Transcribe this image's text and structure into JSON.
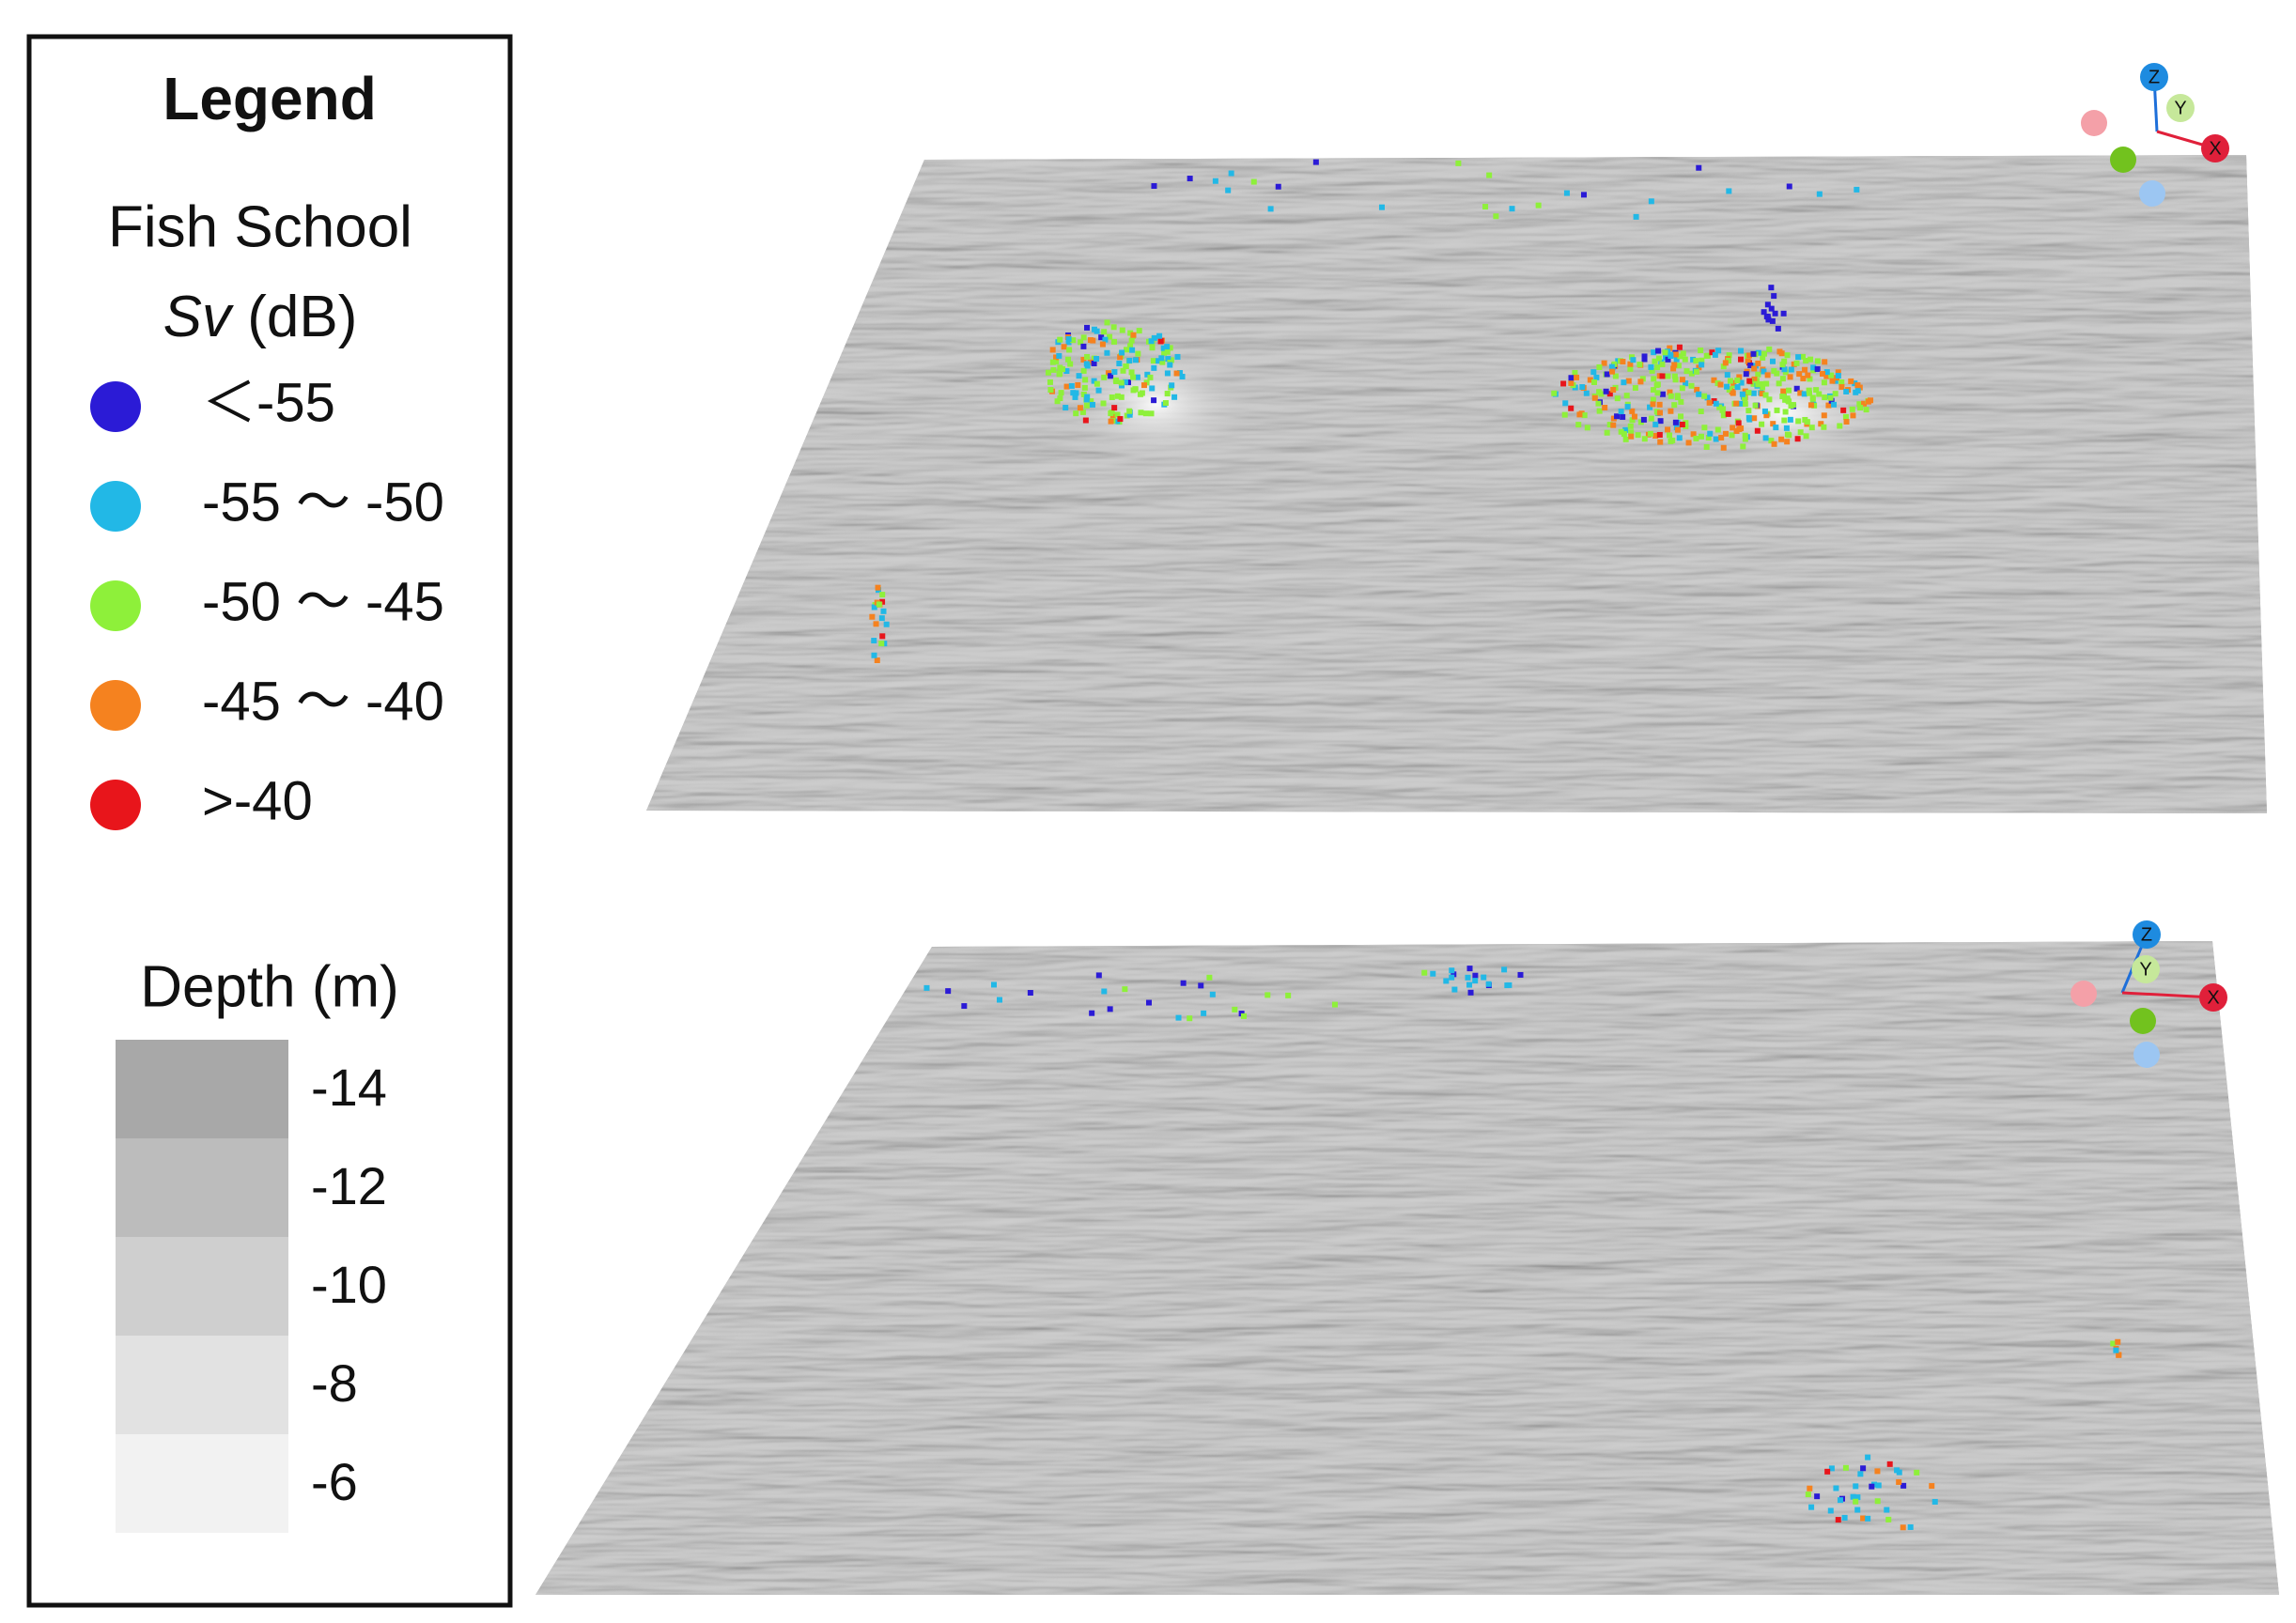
{
  "legend": {
    "title": "Legend",
    "fish_school": {
      "title": "Fish School",
      "sv_symbol": "Sv",
      "sv_unit": "(dB)",
      "classes": [
        {
          "label": "＜-55",
          "color": "#2b1bd6"
        },
        {
          "label": "-55 ～ -50",
          "color": "#22b8e6"
        },
        {
          "label": "-50 ～ -45",
          "color": "#8ef03a"
        },
        {
          "label": "-45 ～ -40",
          "color": "#f5821f"
        },
        {
          "label": ">-40",
          "color": "#e8151b"
        }
      ]
    },
    "depth": {
      "title": "Depth (m)",
      "levels": [
        {
          "value": -14,
          "color": "#a8a8a8"
        },
        {
          "value": -12,
          "color": "#bcbcbc"
        },
        {
          "value": -10,
          "color": "#cfcfcf"
        },
        {
          "value": -8,
          "color": "#e2e2e2"
        },
        {
          "value": -6,
          "color": "#f2f2f2"
        }
      ]
    }
  },
  "views": [
    {
      "axes": [
        "Z",
        "Y",
        "X"
      ]
    },
    {
      "axes": [
        "Z",
        "Y",
        "X"
      ]
    }
  ]
}
